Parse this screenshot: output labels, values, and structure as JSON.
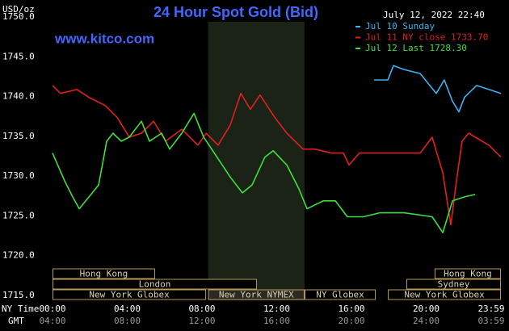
{
  "chart_data": {
    "type": "line",
    "title": "24 Hour Spot Gold (Bid)",
    "source": "www.kitco.com",
    "y_unit": "USD/oz",
    "timestamp": "July 12, 2022 22:40",
    "xlim": [
      0,
      24
    ],
    "ylim": [
      1715,
      1750
    ],
    "grid": true,
    "legend": "top-right",
    "yticks": [
      {
        "value": 1715,
        "label": "1715.0"
      },
      {
        "value": 1720,
        "label": "1720.0"
      },
      {
        "value": 1725,
        "label": "1725.0"
      },
      {
        "value": 1730,
        "label": "1730.0"
      },
      {
        "value": 1735,
        "label": "1735.0"
      },
      {
        "value": 1740,
        "label": "1740.0"
      },
      {
        "value": 1745,
        "label": "1745.0"
      },
      {
        "value": 1750,
        "label": "1750.0"
      }
    ],
    "x_row_label": "NY Time",
    "xticks": [
      {
        "value": 0,
        "label": "00:00"
      },
      {
        "value": 4,
        "label": "04:00"
      },
      {
        "value": 8,
        "label": "08:00"
      },
      {
        "value": 12,
        "label": "12:00"
      },
      {
        "value": 16,
        "label": "16:00"
      },
      {
        "value": 20,
        "label": "20:00"
      },
      {
        "value": 23.98,
        "label": "23:59"
      }
    ],
    "x2_row_label": "GMT",
    "x2_labels": [
      "04:00",
      "08:00",
      "12:00",
      "16:00",
      "20:00",
      "24:00",
      "03:59"
    ],
    "highlight_x": [
      8.33,
      13.49
    ],
    "sessions": [
      {
        "label": "Hong Kong",
        "start": 0,
        "end": 5.49,
        "row": 0
      },
      {
        "label": "London",
        "start": 0,
        "end": 10.94,
        "row": 1
      },
      {
        "label": "New York Globex",
        "start": 0,
        "end": 8.22,
        "row": 2
      },
      {
        "label": "New York NYMEX",
        "start": 8.33,
        "end": 13.49,
        "row": 2
      },
      {
        "label": "NY Globex",
        "start": 13.49,
        "end": 17.3,
        "row": 2
      },
      {
        "label": "Hong Kong",
        "start": 20.45,
        "end": 24,
        "row": 0
      },
      {
        "label": "Sydney",
        "start": 18.94,
        "end": 24,
        "row": 1
      },
      {
        "label": "New York Globex",
        "start": 17.95,
        "end": 24,
        "row": 2
      }
    ],
    "series": [
      {
        "name": "Jul 10 Sunday",
        "color": "#3ab4f0",
        "x": [
          17.21,
          17.95,
          18.25,
          18.81,
          19.68,
          20.54,
          20.97,
          21.41,
          21.75,
          22.05,
          22.7,
          23.35,
          24
        ],
        "values": [
          1742.7,
          1742.7,
          1744.5,
          1744,
          1743.5,
          1741,
          1742.7,
          1740,
          1738.7,
          1740.5,
          1742,
          1741.5,
          1741
        ]
      },
      {
        "name": "Jul 11 NY close 1733.70",
        "color": "#e02020",
        "x": [
          0,
          0.43,
          1.3,
          1.95,
          2.81,
          3.46,
          4.11,
          4.76,
          5.41,
          6.05,
          6.92,
          7.78,
          8.22,
          8.86,
          9.51,
          10.08,
          10.59,
          11.11,
          11.89,
          12.54,
          13.41,
          14.05,
          14.92,
          15.57,
          15.87,
          16.43,
          17.95,
          19.68,
          20.32,
          20.89,
          21.32,
          21.62,
          21.92,
          22.27,
          23.35,
          24
        ],
        "values": [
          1742,
          1741,
          1741.5,
          1740.5,
          1739.5,
          1738,
          1735.5,
          1736,
          1737.5,
          1735,
          1736.5,
          1734.5,
          1736,
          1734.5,
          1737,
          1741,
          1739,
          1740.8,
          1738,
          1736,
          1734,
          1734,
          1733.5,
          1733.5,
          1732,
          1733.5,
          1733.5,
          1733.5,
          1735.5,
          1731,
          1724.5,
          1730,
          1735,
          1736,
          1734.5,
          1733
        ]
      },
      {
        "name": "Jul 12 Last 1728.30",
        "color": "#3ee03e",
        "x": [
          0,
          0.65,
          1.08,
          1.43,
          1.95,
          2.47,
          2.9,
          3.24,
          3.68,
          4.11,
          4.76,
          5.19,
          5.84,
          6.27,
          6.92,
          7.57,
          8.09,
          8.52,
          9.51,
          10.16,
          10.68,
          11.37,
          11.81,
          12.54,
          13.19,
          13.62,
          14.49,
          15.14,
          15.78,
          16.65,
          17.51,
          18.81,
          20.32,
          20.89,
          21.41,
          22.05,
          22.62
        ],
        "values": [
          1733.5,
          1730,
          1728,
          1726.5,
          1728,
          1729.5,
          1735,
          1736,
          1735,
          1735.5,
          1737.5,
          1735,
          1736,
          1734,
          1736,
          1738.5,
          1735.5,
          1734,
          1730.5,
          1728.5,
          1729.5,
          1733,
          1733.8,
          1732,
          1729,
          1726.5,
          1727.5,
          1727.5,
          1725.5,
          1725.5,
          1726,
          1726,
          1725.5,
          1723.5,
          1727.5,
          1728,
          1728.3
        ]
      }
    ]
  }
}
